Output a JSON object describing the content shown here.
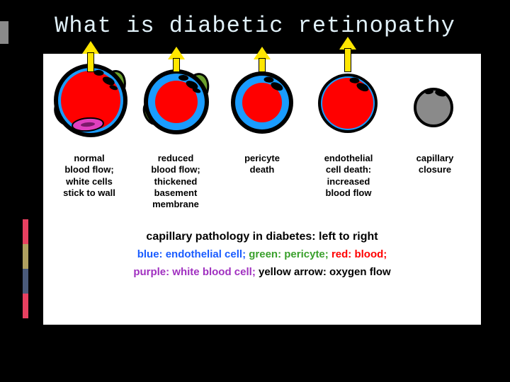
{
  "background_color": "#000000",
  "title": "What is diabetic retinopathy",
  "title_color": "#e0f0f8",
  "panel_bg": "#ffffff",
  "colors": {
    "endothelial": "#1a9cff",
    "pericyte": "#6aa02c",
    "blood": "#ff0000",
    "wbc": "#e040c0",
    "arrow": "#ffe600",
    "closed": "#8a8a8a",
    "outline": "#000000"
  },
  "capillaries": [
    {
      "name": "normal",
      "outer_r": 52,
      "endo_r": 46,
      "blood_r": 42,
      "pericyte": true,
      "wbc": true,
      "arrow_height": 28,
      "closed": false
    },
    {
      "name": "reduced",
      "outer_r": 46,
      "endo_r": 40,
      "blood_r": 30,
      "pericyte": true,
      "wbc": false,
      "arrow_height": 20,
      "closed": false
    },
    {
      "name": "pericyte-death",
      "outer_r": 44,
      "endo_r": 38,
      "blood_r": 28,
      "pericyte": false,
      "wbc": false,
      "arrow_height": 20,
      "closed": false
    },
    {
      "name": "endothelial-death",
      "outer_r": 42,
      "endo_r": 38,
      "blood_r": 36,
      "pericyte": false,
      "wbc": false,
      "arrow_height": 34,
      "closed": false
    },
    {
      "name": "closure",
      "outer_r": 26,
      "closed": true
    }
  ],
  "labels": [
    "normal\nblood flow;\nwhite cells\nstick to wall",
    "reduced\nblood flow;\nthickened\nbasement\nmembrane",
    "pericyte\ndeath",
    "endothelial\ncell death:\nincreased\nblood flow",
    "capillary\nclosure"
  ],
  "caption_main": "capillary pathology in diabetes: left to right",
  "legend": [
    {
      "text": "blue: endothelial cell;",
      "color": "#1a5cff"
    },
    {
      "text": "green: pericyte;",
      "color": "#3aa02c"
    },
    {
      "text": "red: blood;",
      "color": "#ff0000"
    },
    {
      "text": "purple: white blood cell;",
      "color": "#a030c0"
    },
    {
      "text": "yellow arrow: oxygen flow",
      "color": "#000000"
    }
  ],
  "sidebar_colors": [
    "#e84060",
    "#b0a060",
    "#4a5a7a",
    "#e84060"
  ]
}
